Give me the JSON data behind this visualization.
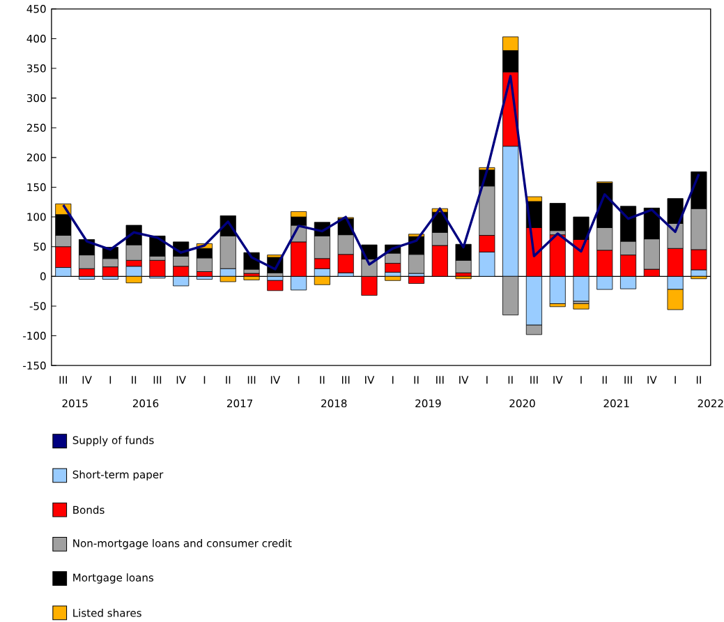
{
  "chart_data": {
    "type": "bar",
    "stacked": true,
    "categories": [
      "III",
      "IV",
      "I",
      "II",
      "III",
      "IV",
      "I",
      "II",
      "III",
      "IV",
      "I",
      "II",
      "III",
      "IV",
      "I",
      "II",
      "III",
      "IV",
      "I",
      "II",
      "III",
      "IV",
      "I",
      "II",
      "III",
      "IV",
      "I",
      "II"
    ],
    "annotations": [
      "2015",
      "2016",
      "2017",
      "2018",
      "2019",
      "2020",
      "2021",
      "2022"
    ],
    "series": [
      {
        "name": "Supply of funds",
        "type": "line",
        "color": "#000080",
        "values": [
          120,
          59,
          45,
          74,
          65,
          40,
          52,
          92,
          32,
          12,
          85,
          76,
          100,
          20,
          47,
          60,
          114,
          49,
          178,
          337,
          34,
          72,
          42,
          138,
          97,
          112,
          75,
          172
        ]
      },
      {
        "name": "Short-term paper",
        "color": "#99ccff",
        "values": [
          15,
          -5,
          -5,
          17,
          -3,
          -16,
          -5,
          13,
          null,
          -7,
          -23,
          13,
          6,
          null,
          7,
          5,
          null,
          null,
          41,
          219,
          -82,
          -46,
          -42,
          -22,
          -21,
          null,
          -22,
          11
        ]
      },
      {
        "name": "Bonds",
        "color": "#ff0000",
        "values": [
          35,
          13,
          16,
          10,
          27,
          17,
          8,
          null,
          5,
          -17,
          58,
          17,
          31,
          -32,
          15,
          -12,
          52,
          6,
          28,
          125,
          82,
          70,
          62,
          44,
          36,
          12,
          47,
          34
        ]
      },
      {
        "name": "Non-mortgage loans and consumer credit",
        "color": "#a0a0a0",
        "values": [
          19,
          23,
          14,
          26,
          7,
          17,
          23,
          55,
          7,
          6,
          28,
          38,
          33,
          29,
          17,
          32,
          22,
          21,
          83,
          -65,
          -16,
          7,
          -4,
          38,
          23,
          51,
          42,
          69
        ]
      },
      {
        "name": "Mortgage loans",
        "color": "#000000",
        "values": [
          35,
          26,
          19,
          33,
          34,
          24,
          16,
          34,
          28,
          26,
          14,
          23,
          27,
          24,
          14,
          30,
          34,
          27,
          27,
          36,
          44,
          46,
          38,
          75,
          59,
          52,
          42,
          62
        ]
      },
      {
        "name": "Listed shares",
        "color": "#ffb000",
        "values": [
          18,
          null,
          null,
          -11,
          null,
          null,
          8,
          -9,
          -6,
          4,
          9,
          -14,
          2,
          null,
          -7,
          4,
          6,
          -4,
          4,
          23,
          8,
          -5,
          -9,
          2,
          null,
          null,
          -34,
          -4
        ]
      }
    ],
    "ylim": [
      -150,
      450
    ],
    "yticks": [
      -150,
      -100,
      -50,
      0,
      50,
      100,
      150,
      200,
      250,
      300,
      350,
      400,
      450
    ],
    "ref_lines": [
      {
        "axis": "y",
        "value": 0,
        "color": "#000000"
      }
    ],
    "legend": "bottom",
    "marker": "none",
    "line_style": "solid"
  }
}
